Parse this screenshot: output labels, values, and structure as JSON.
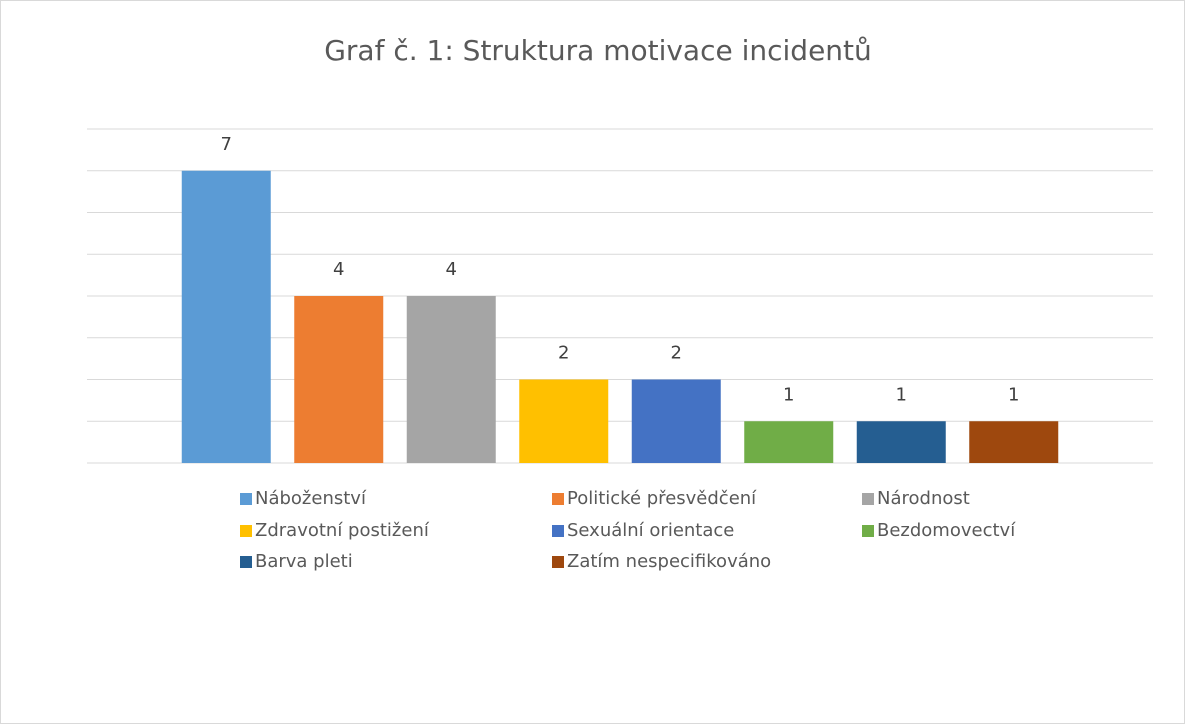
{
  "chart_data": {
    "type": "bar",
    "title": "Graf č. 1: Struktura motivace incidentů",
    "categories": [
      "Náboženství",
      "Politické přesvědčení",
      "Národnost",
      "Zdravotní postižení",
      "Sexuální orientace",
      "Bezdomovectví",
      "Barva pleti",
      "Zatím nespecifikováno"
    ],
    "values": [
      7,
      4,
      4,
      2,
      2,
      1,
      1,
      1
    ],
    "colors": [
      "#5b9bd5",
      "#ed7d31",
      "#a5a5a5",
      "#ffc000",
      "#4472c4",
      "#70ad47",
      "#255e91",
      "#9e480e"
    ],
    "ylim": [
      0,
      8
    ],
    "yticks": [
      0,
      1,
      2,
      3,
      4,
      5,
      6,
      7,
      8
    ],
    "grid": true,
    "legend": "bottom"
  }
}
